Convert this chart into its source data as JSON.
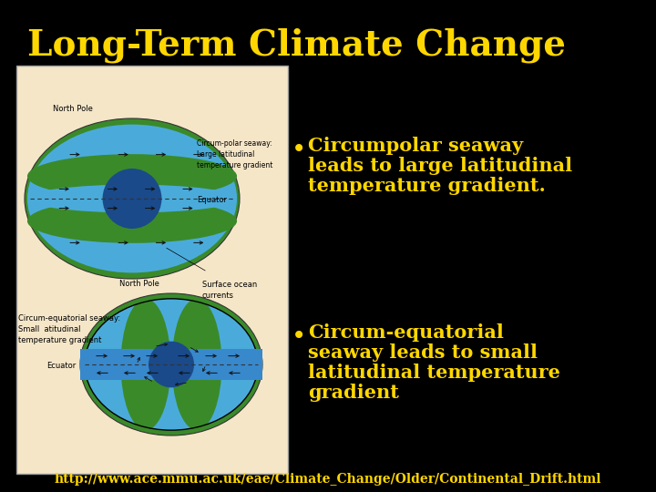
{
  "background_color": "#000000",
  "title": "Long-Term Climate Change",
  "title_color": "#FFD700",
  "title_fontsize": 28,
  "title_fontstyle": "bold",
  "bullet1_line1": "Circumpolar seaway",
  "bullet1_line2": "leads to large latitudinal",
  "bullet1_line3": "temperature gradient.",
  "bullet2_line1": "Circum-equatorial",
  "bullet2_line2": "seaway leads to small",
  "bullet2_line3": "latitudinal temperature",
  "bullet2_line4": "gradient",
  "bullet_color": "#FFD700",
  "bullet_fontsize": 15,
  "footer": "http://www.ace.mmu.ac.uk/eae/Climate_Change/Older/Continental_Drift.html",
  "footer_color": "#FFD700",
  "footer_fontsize": 10,
  "image_bg": "#F5E6C8",
  "globe_green": "#3A8A2A",
  "globe_blue": "#4AABDB",
  "globe_dark_blue": "#1A4A8A",
  "globe_stripe_blue": "#3888CC"
}
